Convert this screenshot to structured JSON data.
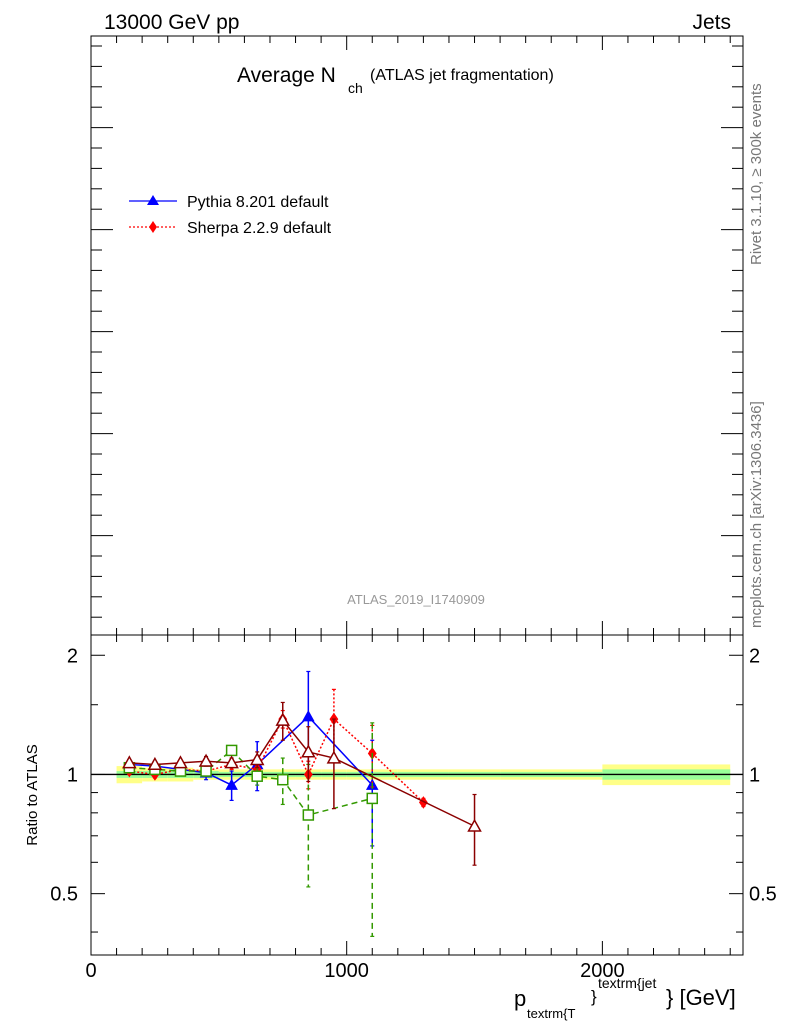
{
  "header": {
    "left": "13000 GeV pp",
    "right": "Jets"
  },
  "title": {
    "main": "Average N",
    "sub": "ch",
    "suffix": "(ATLAS jet fragmentation)"
  },
  "side_labels": {
    "rivet": "Rivet 3.1.10, ≥ 300k events",
    "mcplots": "mcplots.cern.ch [arXiv:1306.3436]"
  },
  "watermark": "ATLAS_2019_I1740909",
  "legend": [
    {
      "label": "Pythia 8.201 default",
      "color": "#0000ff",
      "marker": "triangle",
      "dash": ""
    },
    {
      "label": "Sherpa 2.2.9 default",
      "color": "#ff0000",
      "marker": "diamond",
      "dash": "2,2"
    }
  ],
  "ratio_ylabel": "Ratio to ATLAS",
  "xlabel": {
    "p": "p",
    "sub": "textrm{T",
    "brace": "}",
    "sup": "textrm{jet",
    "unit": "} [GeV]"
  },
  "chart_data": {
    "type": "line",
    "xlim": [
      0,
      2550
    ],
    "ratio_ylim": [
      0.35,
      2.25
    ],
    "x_ticks": [
      {
        "value": 0,
        "label": "0"
      },
      {
        "value": 1000,
        "label": "1000"
      },
      {
        "value": 2000,
        "label": "2000"
      }
    ],
    "y_ticks": [
      {
        "value": 0.5,
        "label": "0.5"
      },
      {
        "value": 1,
        "label": "1"
      },
      {
        "value": 2,
        "label": "2"
      }
    ],
    "reference_band": [
      {
        "x0": 100,
        "x1": 200,
        "inner": 0.02,
        "outer": 0.05
      },
      {
        "x0": 200,
        "x1": 300,
        "inner": 0.02,
        "outer": 0.04
      },
      {
        "x0": 300,
        "x1": 400,
        "inner": 0.02,
        "outer": 0.04
      },
      {
        "x0": 400,
        "x1": 500,
        "inner": 0.02,
        "outer": 0.03
      },
      {
        "x0": 500,
        "x1": 600,
        "inner": 0.015,
        "outer": 0.03
      },
      {
        "x0": 600,
        "x1": 700,
        "inner": 0.015,
        "outer": 0.03
      },
      {
        "x0": 700,
        "x1": 800,
        "inner": 0.015,
        "outer": 0.03
      },
      {
        "x0": 800,
        "x1": 900,
        "inner": 0.015,
        "outer": 0.03
      },
      {
        "x0": 900,
        "x1": 1000,
        "inner": 0.015,
        "outer": 0.03
      },
      {
        "x0": 1000,
        "x1": 1200,
        "inner": 0.015,
        "outer": 0.03
      },
      {
        "x0": 1200,
        "x1": 1400,
        "inner": 0.015,
        "outer": 0.03
      },
      {
        "x0": 1400,
        "x1": 1600,
        "inner": 0.015,
        "outer": 0.03
      },
      {
        "x0": 1600,
        "x1": 2000,
        "inner": 0.015,
        "outer": 0.03
      },
      {
        "x0": 2000,
        "x1": 2500,
        "inner": 0.03,
        "outer": 0.06
      }
    ],
    "series": [
      {
        "name": "Pythia 8.201 default",
        "color": "#0000ff",
        "marker": "triangle",
        "filled": true,
        "dash": "",
        "points": [
          {
            "x": 150,
            "y": 1.06,
            "err": 0.03
          },
          {
            "x": 250,
            "y": 1.05,
            "err": 0.03
          },
          {
            "x": 350,
            "y": 1.03,
            "err": 0.03
          },
          {
            "x": 450,
            "y": 1.01,
            "err": 0.04
          },
          {
            "x": 550,
            "y": 0.94,
            "err": 0.08
          },
          {
            "x": 650,
            "y": 1.06,
            "err": 0.15
          },
          {
            "x": 850,
            "y": 1.4,
            "err": 0.42
          },
          {
            "x": 1100,
            "y": 0.94,
            "err": 0.28
          }
        ]
      },
      {
        "color": "#ff0000",
        "marker": "diamond",
        "filled": true,
        "dash": "2,2",
        "points": [
          {
            "x": 150,
            "y": 1.02,
            "err": 0.02
          },
          {
            "x": 250,
            "y": 1.0,
            "err": 0.02
          },
          {
            "x": 350,
            "y": 1.03,
            "err": 0.02
          },
          {
            "x": 450,
            "y": 1.02,
            "err": 0.02
          },
          {
            "x": 550,
            "y": 1.06,
            "err": 0.03
          },
          {
            "x": 650,
            "y": 1.03,
            "err": 0.05
          },
          {
            "x": 750,
            "y": 1.38,
            "err": 0.07
          },
          {
            "x": 850,
            "y": 1.0,
            "err": 0.08
          },
          {
            "x": 950,
            "y": 1.38,
            "err": 0.26
          },
          {
            "x": 1100,
            "y": 1.13,
            "err": 0.2
          },
          {
            "x": 1300,
            "y": 0.85,
            "err": 0.02
          }
        ]
      },
      {
        "color": "#339900",
        "marker": "square",
        "filled": false,
        "dash": "6,4",
        "points": [
          {
            "x": 150,
            "y": 1.04,
            "err": 0.02
          },
          {
            "x": 250,
            "y": 1.03,
            "err": 0.02
          },
          {
            "x": 350,
            "y": 1.02,
            "err": 0.02
          },
          {
            "x": 450,
            "y": 1.02,
            "err": 0.03
          },
          {
            "x": 550,
            "y": 1.15,
            "err": 0.03
          },
          {
            "x": 650,
            "y": 0.99,
            "err": 0.05
          },
          {
            "x": 750,
            "y": 0.97,
            "err": 0.13
          },
          {
            "x": 850,
            "y": 0.79,
            "err": 0.27
          },
          {
            "x": 1100,
            "y": 0.87,
            "err": 0.48
          }
        ]
      },
      {
        "color": "#8b0000",
        "marker": "triangle",
        "filled": false,
        "dash": "",
        "points": [
          {
            "x": 150,
            "y": 1.07,
            "err": 0.02
          },
          {
            "x": 250,
            "y": 1.06,
            "err": 0.02
          },
          {
            "x": 350,
            "y": 1.07,
            "err": 0.02
          },
          {
            "x": 450,
            "y": 1.08,
            "err": 0.03
          },
          {
            "x": 550,
            "y": 1.07,
            "err": 0.03
          },
          {
            "x": 650,
            "y": 1.09,
            "err": 0.05
          },
          {
            "x": 750,
            "y": 1.37,
            "err": 0.15
          },
          {
            "x": 850,
            "y": 1.14,
            "err": 0.18
          },
          {
            "x": 950,
            "y": 1.1,
            "err": 0.28
          },
          {
            "x": 1500,
            "y": 0.74,
            "err": 0.15
          }
        ]
      }
    ]
  }
}
